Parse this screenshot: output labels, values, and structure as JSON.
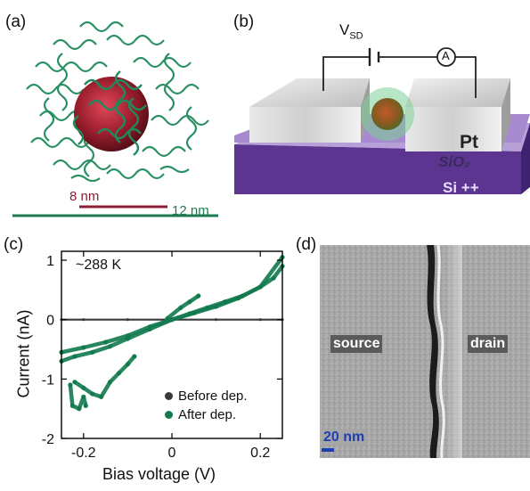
{
  "panels": {
    "a": {
      "label": "(a)",
      "scale_short": "8 nm",
      "scale_long": "12 nm",
      "colors": {
        "core": "#9c1f2e",
        "shell": "#1f8a5a",
        "short_bar": "#8a1e36",
        "long_bar": "#1d7a4f"
      }
    },
    "b": {
      "label": "(b)",
      "vsd_main": "V",
      "vsd_sub": "SD",
      "ammeter": "A",
      "pt": "Pt",
      "sio2": "SiO₂",
      "si": "Si ++",
      "colors": {
        "substrate": "#5c3590",
        "oxide": "#b7a0d8",
        "electrode": "#d9d9d9"
      }
    },
    "c": {
      "label": "(c)"
    },
    "d": {
      "label": "(d)",
      "source": "source",
      "drain": "drain",
      "scale": "20 nm"
    }
  },
  "chart_data": {
    "type": "line",
    "xlabel": "Bias voltage (V)",
    "ylabel": "Current (nA)",
    "annotation": "~288 K",
    "xlim": [
      -0.25,
      0.25
    ],
    "ylim": [
      -2,
      1.15
    ],
    "xticks": [
      -0.2,
      0,
      0.2
    ],
    "yticks": [
      -2,
      -1,
      0,
      1
    ],
    "xtick_labels": [
      "-0.2",
      "0",
      "0.2"
    ],
    "ytick_labels": [
      "-2",
      "-1",
      "0",
      "1"
    ],
    "legend_position": "bottom-right",
    "series": [
      {
        "name": "Before dep.",
        "color": "#3a3a3a",
        "x": [
          -0.25,
          -0.2,
          -0.1,
          0,
          0.1,
          0.2,
          0.25
        ],
        "y": [
          0,
          0,
          0,
          0,
          0,
          0,
          0
        ]
      },
      {
        "name": "After dep.",
        "color": "#117a4e",
        "x": [
          -0.25,
          -0.22,
          -0.18,
          -0.14,
          -0.1,
          -0.05,
          0,
          0.04,
          0.08,
          0.12,
          0.16,
          0.2,
          0.23,
          0.25
        ],
        "y": [
          -0.7,
          -0.62,
          -0.55,
          -0.45,
          -0.32,
          -0.16,
          0,
          0.1,
          0.2,
          0.3,
          0.4,
          0.55,
          0.7,
          0.9
        ]
      },
      {
        "name": "After dep.",
        "color": "#117a4e",
        "x": [
          -0.25,
          -0.2,
          -0.15,
          -0.1,
          -0.05,
          0,
          0.05,
          0.1,
          0.15,
          0.2,
          0.25
        ],
        "y": [
          -0.55,
          -0.47,
          -0.38,
          -0.27,
          -0.12,
          0,
          0.11,
          0.22,
          0.36,
          0.55,
          1.05
        ]
      },
      {
        "name": "After dep.",
        "color": "#117a4e",
        "x": [
          -0.22,
          -0.2,
          -0.18,
          -0.16,
          -0.14,
          -0.12,
          -0.1,
          -0.085
        ],
        "y": [
          -1.05,
          -1.15,
          -1.25,
          -1.3,
          -1.05,
          -0.9,
          -0.75,
          -0.62
        ]
      },
      {
        "name": "After dep.",
        "color": "#117a4e",
        "x": [
          -0.23,
          -0.225,
          -0.21,
          -0.2,
          -0.195
        ],
        "y": [
          -1.1,
          -1.45,
          -1.5,
          -1.3,
          -1.45
        ]
      },
      {
        "name": "After dep.",
        "color": "#117a4e",
        "x": [
          -0.01,
          0.02,
          0.04,
          0.06
        ],
        "y": [
          0.02,
          0.2,
          0.3,
          0.4
        ]
      }
    ]
  }
}
